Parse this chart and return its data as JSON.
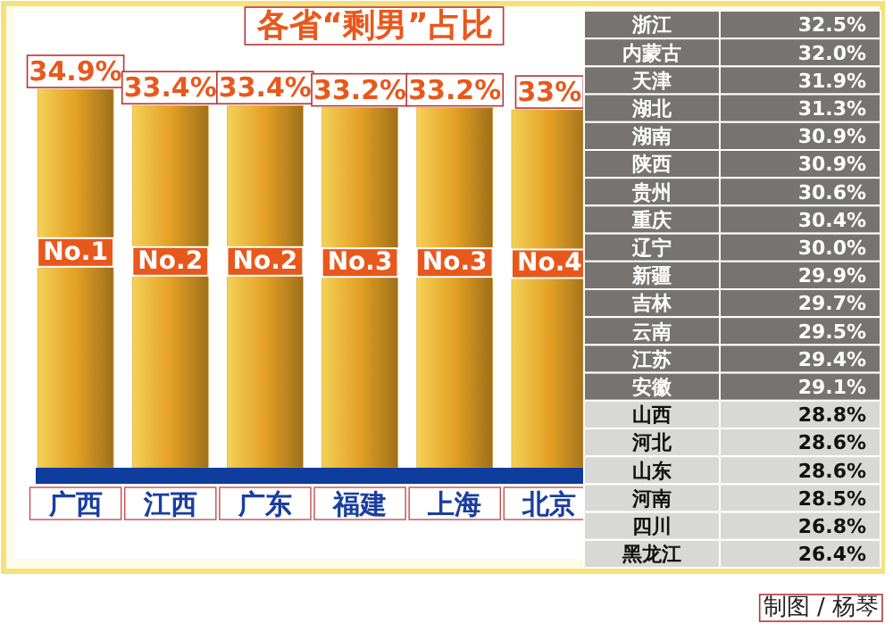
{
  "chart_data": [
    {
      "type": "bar",
      "title": "各省“剩男”占比",
      "categories": [
        "广西",
        "江西",
        "广东",
        "福建",
        "上海",
        "北京"
      ],
      "values": [
        34.9,
        33.4,
        33.4,
        33.2,
        33.2,
        33
      ],
      "value_labels": [
        "34.9%",
        "33.4%",
        "33.4%",
        "33.2%",
        "33.2%",
        "33%"
      ],
      "color": "#e3a024",
      "tick_labels": "x",
      "annotations": [
        {
          "text": "No.1",
          "x": "广西"
        },
        {
          "text": "No.2",
          "x": "江西"
        },
        {
          "text": "No.2",
          "x": "广东"
        },
        {
          "text": "No.3",
          "x": "福建"
        },
        {
          "text": "No.3",
          "x": "上海"
        },
        {
          "text": "No.4",
          "x": "北京"
        },
        "制图 / 杨琴"
      ]
    },
    {
      "type": "heatmap",
      "categories": [
        null
      ],
      "y_categories": [
        "浙江",
        "内蒙古",
        "天津",
        "湖北",
        "湖南",
        "陕西",
        "贵州",
        "重庆",
        "辽宁",
        "新疆",
        "吉林",
        "云南",
        "江苏",
        "安徽",
        "山西",
        "河北",
        "山东",
        "河南",
        "四川",
        "黑龙江"
      ],
      "cells": [
        [
          32.5
        ],
        [
          32.0
        ],
        [
          31.9
        ],
        [
          31.3
        ],
        [
          30.9
        ],
        [
          30.9
        ],
        [
          30.6
        ],
        [
          30.4
        ],
        [
          30.0
        ],
        [
          29.9
        ],
        [
          29.7
        ],
        [
          29.5
        ],
        [
          29.4
        ],
        [
          29.1
        ],
        [
          28.8
        ],
        [
          28.6
        ],
        [
          28.6
        ],
        [
          28.5
        ],
        [
          26.8
        ],
        [
          26.4
        ]
      ],
      "cell_labels": [
        [
          "32.5%"
        ],
        [
          "32.0%"
        ],
        [
          "31.9%"
        ],
        [
          "31.3%"
        ],
        [
          "30.9%"
        ],
        [
          "30.9%"
        ],
        [
          "30.6%"
        ],
        [
          "30.4%"
        ],
        [
          "30.0%"
        ],
        [
          "29.9%"
        ],
        [
          "29.7%"
        ],
        [
          "29.5%"
        ],
        [
          "29.4%"
        ],
        [
          "29.1%"
        ],
        [
          "28.8%"
        ],
        [
          "28.6%"
        ],
        [
          "28.6%"
        ],
        [
          "28.5%"
        ],
        [
          "26.8%"
        ],
        [
          "26.4%"
        ]
      ],
      "colors": [
        "#767370",
        "#767370",
        "#767370",
        "#767370",
        "#767370",
        "#767370",
        "#767370",
        "#767370",
        "#767370",
        "#767370",
        "#767370",
        "#767370",
        "#767370",
        "#767370",
        "#d8d8d6",
        "#d8d8d6",
        "#d8d8d6",
        "#d8d8d6",
        "#d8d8d6",
        "#d8d8d6"
      ]
    }
  ]
}
